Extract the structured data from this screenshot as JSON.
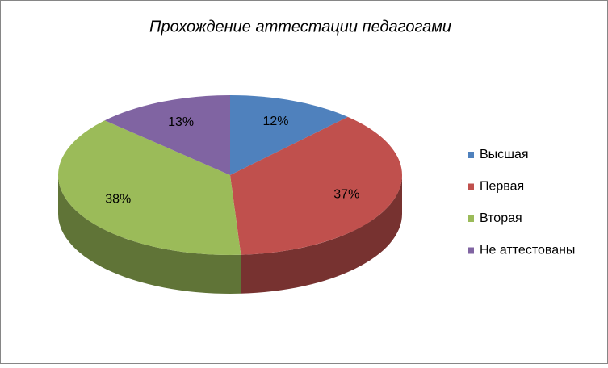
{
  "chart_data": {
    "type": "pie3d",
    "title": "Прохождение аттестации педагогами",
    "categories": [
      "Высшая",
      "Первая",
      "Вторая",
      "Не аттестованы"
    ],
    "values": [
      12,
      37,
      38,
      13
    ],
    "value_labels": [
      "12%",
      "37%",
      "38%",
      "13%"
    ],
    "colors": [
      "#4f81bd",
      "#c0504d",
      "#9bbb59",
      "#8064a2"
    ],
    "legend": "right"
  }
}
